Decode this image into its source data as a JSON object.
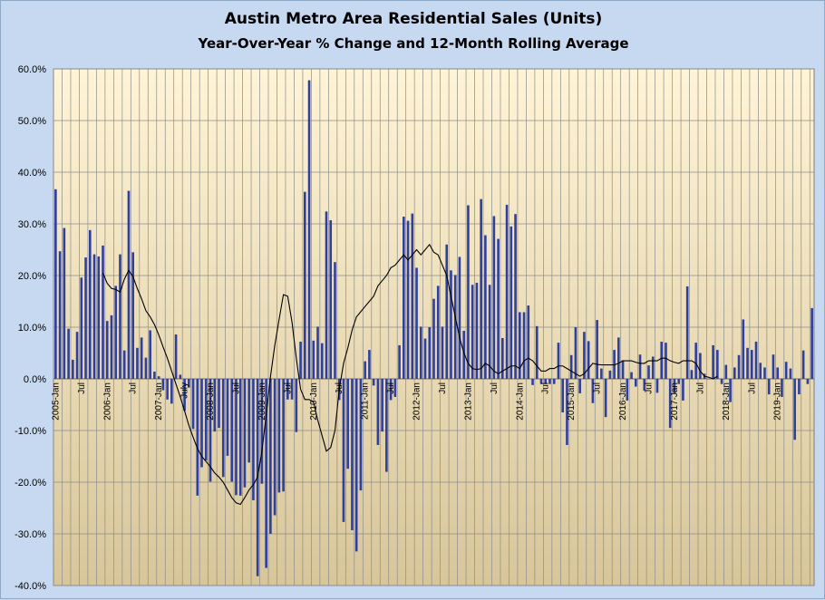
{
  "chart_data": {
    "type": "bar",
    "title": "Austin Metro Area Residential Sales (Units)",
    "subtitle": "Year-Over-Year % Change and 12-Month Rolling Average",
    "xlabel": "",
    "ylabel": "",
    "ylim": [
      -40,
      60
    ],
    "y_ticks": [
      "60.0%",
      "50.0%",
      "40.0%",
      "30.0%",
      "20.0%",
      "10.0%",
      "0.0%",
      "-10.0%",
      "-20.0%",
      "-30.0%",
      "-40.0%"
    ],
    "grid": true,
    "legend": "none",
    "colors": {
      "bars": "#2e3f9e",
      "line": "#000000",
      "plot_top": "#fff4d6",
      "plot_bottom": "#d8c69a",
      "background": "#c6d9f1"
    },
    "x_tick_labels": [
      {
        "index": 0,
        "label": "2005-Jan"
      },
      {
        "index": 6,
        "label": "Jul"
      },
      {
        "index": 12,
        "label": "2006-Jan"
      },
      {
        "index": 18,
        "label": "Jul"
      },
      {
        "index": 24,
        "label": "2007-Jan"
      },
      {
        "index": 30,
        "label": "July"
      },
      {
        "index": 36,
        "label": "2008-Jan"
      },
      {
        "index": 42,
        "label": "Jul"
      },
      {
        "index": 48,
        "label": "2009-Jan"
      },
      {
        "index": 54,
        "label": "Jul"
      },
      {
        "index": 60,
        "label": "2010-Jan"
      },
      {
        "index": 66,
        "label": "Jul"
      },
      {
        "index": 72,
        "label": "2011-Jan"
      },
      {
        "index": 78,
        "label": "Jul"
      },
      {
        "index": 84,
        "label": "2012-Jan"
      },
      {
        "index": 90,
        "label": "Jul"
      },
      {
        "index": 96,
        "label": "2013-Jan"
      },
      {
        "index": 102,
        "label": "Jul"
      },
      {
        "index": 108,
        "label": "2014-Jan"
      },
      {
        "index": 114,
        "label": "Jul"
      },
      {
        "index": 120,
        "label": "2015-Jan"
      },
      {
        "index": 126,
        "label": "Jul"
      },
      {
        "index": 132,
        "label": "2016-Jan"
      },
      {
        "index": 138,
        "label": "Jul"
      },
      {
        "index": 144,
        "label": "2017-Jan"
      },
      {
        "index": 150,
        "label": "Jul"
      },
      {
        "index": 156,
        "label": "2018-Jan"
      },
      {
        "index": 162,
        "label": "Jul"
      },
      {
        "index": 168,
        "label": "2019-Jan"
      }
    ],
    "series": [
      {
        "type": "bar",
        "values": [
          36.7,
          24.7,
          29.2,
          9.7,
          3.7,
          9.1,
          19.6,
          23.5,
          28.8,
          24.1,
          23.7,
          25.8,
          11.2,
          12.3,
          18.0,
          24.1,
          5.5,
          36.4,
          24.5,
          6.0,
          8.0,
          4.1,
          9.4,
          1.4,
          0.5,
          -2.2,
          -4.0,
          -4.8,
          8.6,
          0.8,
          -6.2,
          -1.7,
          -9.7,
          -22.6,
          -17.1,
          -15.8,
          -19.9,
          -10.2,
          -9.5,
          -19.0,
          -14.9,
          -19.9,
          -22.5,
          -22.6,
          -21.0,
          -16.2,
          -23.5,
          -38.2,
          -20.3,
          -36.6,
          -30.0,
          -26.4,
          -22.0,
          -21.8,
          -4.0,
          -4.0,
          -10.3,
          7.2,
          36.2,
          57.8,
          7.4,
          10.1,
          6.9,
          32.4,
          30.7,
          22.6,
          -4.1,
          -27.7,
          -17.4,
          -29.3,
          -33.4,
          -21.6,
          3.4,
          5.6,
          -1.3,
          -12.8,
          -10.2,
          -18.0,
          -4.1,
          -3.5,
          6.5,
          31.4,
          30.6,
          32.0,
          21.5,
          10.1,
          7.8,
          10.0,
          15.5,
          18.0,
          10.1,
          26.0,
          21.0,
          20.1,
          23.6,
          9.3,
          33.6,
          18.2,
          18.6,
          34.8,
          27.8,
          18.2,
          31.5,
          27.1,
          7.9,
          33.7,
          29.5,
          31.9,
          12.9,
          12.9,
          14.2,
          -1.2,
          10.2,
          -1.0,
          -1.0,
          -1.0,
          -1.0,
          7.0,
          -6.5,
          -12.8,
          4.6,
          10.0,
          -2.8,
          9.1,
          7.3,
          -4.7,
          11.4,
          2.0,
          -7.4,
          1.6,
          5.6,
          8.0,
          3.6,
          -4.2,
          1.3,
          -1.5,
          4.7,
          -2.3,
          2.6,
          4.3,
          -2.7,
          7.2,
          7.0,
          -9.5,
          -2.8,
          -1.0,
          -4.2,
          17.9,
          1.7,
          7.0,
          5.0,
          1.0,
          0.0,
          6.5,
          5.6,
          -1.0,
          2.7,
          -4.5,
          2.2,
          4.6,
          11.5,
          6.0,
          5.6,
          7.2,
          3.1,
          2.2,
          -3.0,
          4.7,
          2.2,
          -3.5,
          3.3,
          2.0,
          -11.8,
          -3.0,
          5.5,
          -1.0,
          13.7
        ]
      },
      {
        "type": "line",
        "name": "",
        "start_index": 11,
        "values": [
          20.5,
          18.5,
          17.5,
          17.3,
          16.8,
          19.3,
          21.0,
          19.8,
          17.5,
          15.5,
          13.2,
          12.0,
          10.5,
          8.5,
          6.2,
          4.0,
          1.5,
          -1.0,
          -3.5,
          -6.2,
          -9.0,
          -11.3,
          -13.5,
          -15.0,
          -16.0,
          -17.0,
          -18.2,
          -19.0,
          -20.0,
          -21.5,
          -23.0,
          -24.0,
          -24.3,
          -23.0,
          -21.5,
          -20.5,
          -19.0,
          -14.0,
          -7.0,
          0.5,
          6.5,
          11.5,
          16.3,
          16.0,
          11.0,
          4.0,
          -2.0,
          -4.0,
          -4.0,
          -4.5,
          -8.0,
          -11.0,
          -14.0,
          -13.3,
          -10.0,
          -2.0,
          3.0,
          6.0,
          9.5,
          12.0,
          13.0,
          14.0,
          15.0,
          16.0,
          18.0,
          19.0,
          20.0,
          21.5,
          22.0,
          23.0,
          24.0,
          23.0,
          24.0,
          25.0,
          24.0,
          25.0,
          26.0,
          24.5,
          24.0,
          22.0,
          20.0,
          16.0,
          12.0,
          8.0,
          5.0,
          3.0,
          2.0,
          1.8,
          2.0,
          3.0,
          2.5,
          1.5,
          1.0,
          1.5,
          2.0,
          2.5,
          2.5,
          2.0,
          3.5,
          4.0,
          3.5,
          2.5,
          1.5,
          1.5,
          2.0,
          2.0,
          2.5,
          2.5,
          2.0,
          1.5,
          1.0,
          0.5,
          1.0,
          2.0,
          3.0,
          2.8,
          2.7,
          2.7,
          2.7,
          2.7,
          3.0,
          3.5,
          3.5,
          3.5,
          3.2,
          3.0,
          3.0,
          3.5,
          3.5,
          3.5,
          4.0,
          4.0,
          3.5,
          3.2,
          3.0,
          3.5,
          3.5,
          3.5,
          3.0,
          1.5,
          0.5,
          0.3,
          0.0,
          0.5
        ]
      }
    ]
  }
}
